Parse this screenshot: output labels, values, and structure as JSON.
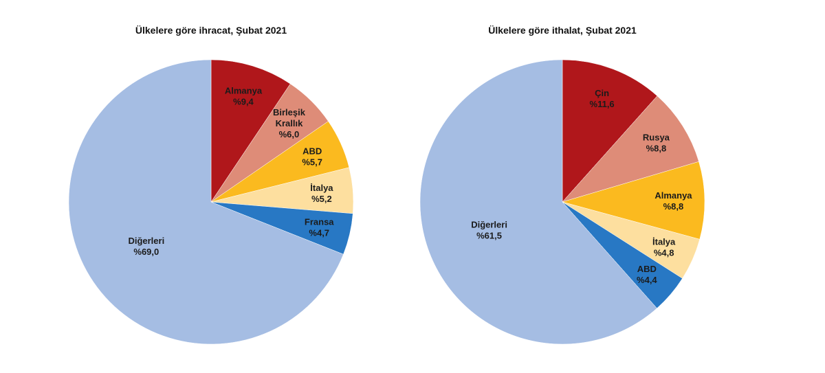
{
  "chart_data": [
    {
      "type": "pie",
      "title": "Ülkelere göre ihracat, Şubat 2021",
      "slices": [
        {
          "label": [
            "Almanya"
          ],
          "value": 9.4,
          "text": "%9,4",
          "color": "#B0171B"
        },
        {
          "label": [
            "Birleşik",
            "Krallık"
          ],
          "value": 6.0,
          "text": "%6,0",
          "color": "#DE8C78"
        },
        {
          "label": [
            "ABD"
          ],
          "value": 5.7,
          "text": "%5,7",
          "color": "#FBBA1F"
        },
        {
          "label": [
            "İtalya"
          ],
          "value": 5.2,
          "text": "%5,2",
          "color": "#FDDF9F"
        },
        {
          "label": [
            "Fransa"
          ],
          "value": 4.7,
          "text": "%4,7",
          "color": "#2878C4"
        },
        {
          "label": [
            "Diğerleri"
          ],
          "value": 69.0,
          "text": "%69,0",
          "color": "#A5BDE3"
        }
      ]
    },
    {
      "type": "pie",
      "title": "Ülkelere göre ithalat, Şubat 2021",
      "slices": [
        {
          "label": [
            "Çin"
          ],
          "value": 11.6,
          "text": "%11,6",
          "color": "#B0171B"
        },
        {
          "label": [
            "Rusya"
          ],
          "value": 8.8,
          "text": "%8,8",
          "color": "#DE8C78"
        },
        {
          "label": [
            "Almanya"
          ],
          "value": 8.8,
          "text": "%8,8",
          "color": "#FBBA1F"
        },
        {
          "label": [
            "İtalya"
          ],
          "value": 4.8,
          "text": "%4,8",
          "color": "#FDDF9F"
        },
        {
          "label": [
            "ABD"
          ],
          "value": 4.4,
          "text": "%4,4",
          "color": "#2878C4"
        },
        {
          "label": [
            "Diğerleri"
          ],
          "value": 61.5,
          "text": "%61,5",
          "color": "#A5BDE3"
        }
      ]
    }
  ]
}
